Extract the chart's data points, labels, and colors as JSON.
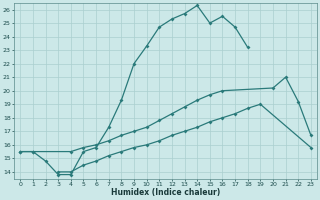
{
  "title": "",
  "xlabel": "Humidex (Indice chaleur)",
  "bg_color": "#cce8e8",
  "grid_color": "#aacfcf",
  "line_color": "#2a7a7a",
  "xlim": [
    -0.5,
    23.5
  ],
  "ylim": [
    13.5,
    26.5
  ],
  "xticks": [
    0,
    1,
    2,
    3,
    4,
    5,
    6,
    7,
    8,
    9,
    10,
    11,
    12,
    13,
    14,
    15,
    16,
    17,
    18,
    19,
    20,
    21,
    22,
    23
  ],
  "yticks": [
    14,
    15,
    16,
    17,
    18,
    19,
    20,
    21,
    22,
    23,
    24,
    25,
    26
  ],
  "line1_x": [
    0,
    1,
    2,
    3,
    4,
    5,
    6,
    7,
    8,
    9,
    10,
    11,
    12,
    13,
    14,
    15,
    16,
    17,
    18
  ],
  "line1_y": [
    15.5,
    15.5,
    14.8,
    13.8,
    13.8,
    15.5,
    15.8,
    17.3,
    19.3,
    22.0,
    23.3,
    24.7,
    25.3,
    25.7,
    26.3,
    25.0,
    25.5,
    24.7,
    23.2
  ],
  "line2_x": [
    0,
    1,
    4,
    5,
    6,
    7,
    8,
    9,
    10,
    11,
    12,
    13,
    14,
    15,
    16,
    20,
    21,
    22,
    23
  ],
  "line2_y": [
    15.5,
    15.5,
    15.5,
    15.8,
    16.0,
    16.3,
    16.7,
    17.0,
    17.3,
    17.8,
    18.3,
    18.8,
    19.3,
    19.7,
    20.0,
    20.2,
    21.0,
    19.2,
    16.7
  ],
  "line3_x": [
    3,
    4,
    5,
    6,
    7,
    8,
    9,
    10,
    11,
    12,
    13,
    14,
    15,
    16,
    17,
    18,
    19,
    23
  ],
  "line3_y": [
    14.0,
    14.0,
    14.5,
    14.8,
    15.2,
    15.5,
    15.8,
    16.0,
    16.3,
    16.7,
    17.0,
    17.3,
    17.7,
    18.0,
    18.3,
    18.7,
    19.0,
    15.8
  ]
}
